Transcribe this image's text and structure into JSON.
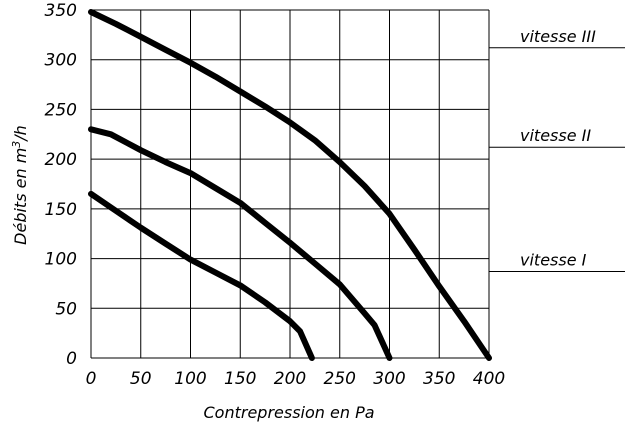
{
  "chart_data": {
    "type": "line",
    "xlabel": "Contrepression en Pa",
    "ylabel_prefix": "Débits en m",
    "ylabel_sup": "3",
    "ylabel_suffix": "/h",
    "xlim": [
      0,
      400
    ],
    "ylim": [
      0,
      350
    ],
    "x_ticks": [
      0,
      50,
      100,
      150,
      200,
      250,
      300,
      350,
      400
    ],
    "y_ticks": [
      0,
      50,
      100,
      150,
      200,
      250,
      300,
      350
    ],
    "grid": true,
    "series": [
      {
        "name": "vitesse III",
        "legend_y": 312,
        "points": [
          [
            0,
            348
          ],
          [
            25,
            336
          ],
          [
            50,
            323
          ],
          [
            75,
            310
          ],
          [
            100,
            297
          ],
          [
            125,
            283
          ],
          [
            150,
            268
          ],
          [
            175,
            253
          ],
          [
            200,
            237
          ],
          [
            225,
            219
          ],
          [
            250,
            197
          ],
          [
            275,
            173
          ],
          [
            300,
            145
          ],
          [
            325,
            109
          ],
          [
            350,
            72
          ],
          [
            375,
            37
          ],
          [
            400,
            0
          ]
        ]
      },
      {
        "name": "vitesse II",
        "legend_y": 212,
        "points": [
          [
            0,
            230
          ],
          [
            20,
            225
          ],
          [
            50,
            209
          ],
          [
            75,
            197
          ],
          [
            100,
            186
          ],
          [
            125,
            171
          ],
          [
            150,
            156
          ],
          [
            175,
            136
          ],
          [
            200,
            116
          ],
          [
            225,
            95
          ],
          [
            250,
            74
          ],
          [
            275,
            45
          ],
          [
            285,
            33
          ],
          [
            300,
            0
          ]
        ]
      },
      {
        "name": "vitesse I",
        "legend_y": 87,
        "points": [
          [
            0,
            165
          ],
          [
            25,
            148
          ],
          [
            50,
            131
          ],
          [
            75,
            115
          ],
          [
            100,
            99
          ],
          [
            125,
            86
          ],
          [
            150,
            73
          ],
          [
            175,
            56
          ],
          [
            200,
            37
          ],
          [
            210,
            27
          ],
          [
            222,
            0
          ]
        ]
      }
    ]
  }
}
